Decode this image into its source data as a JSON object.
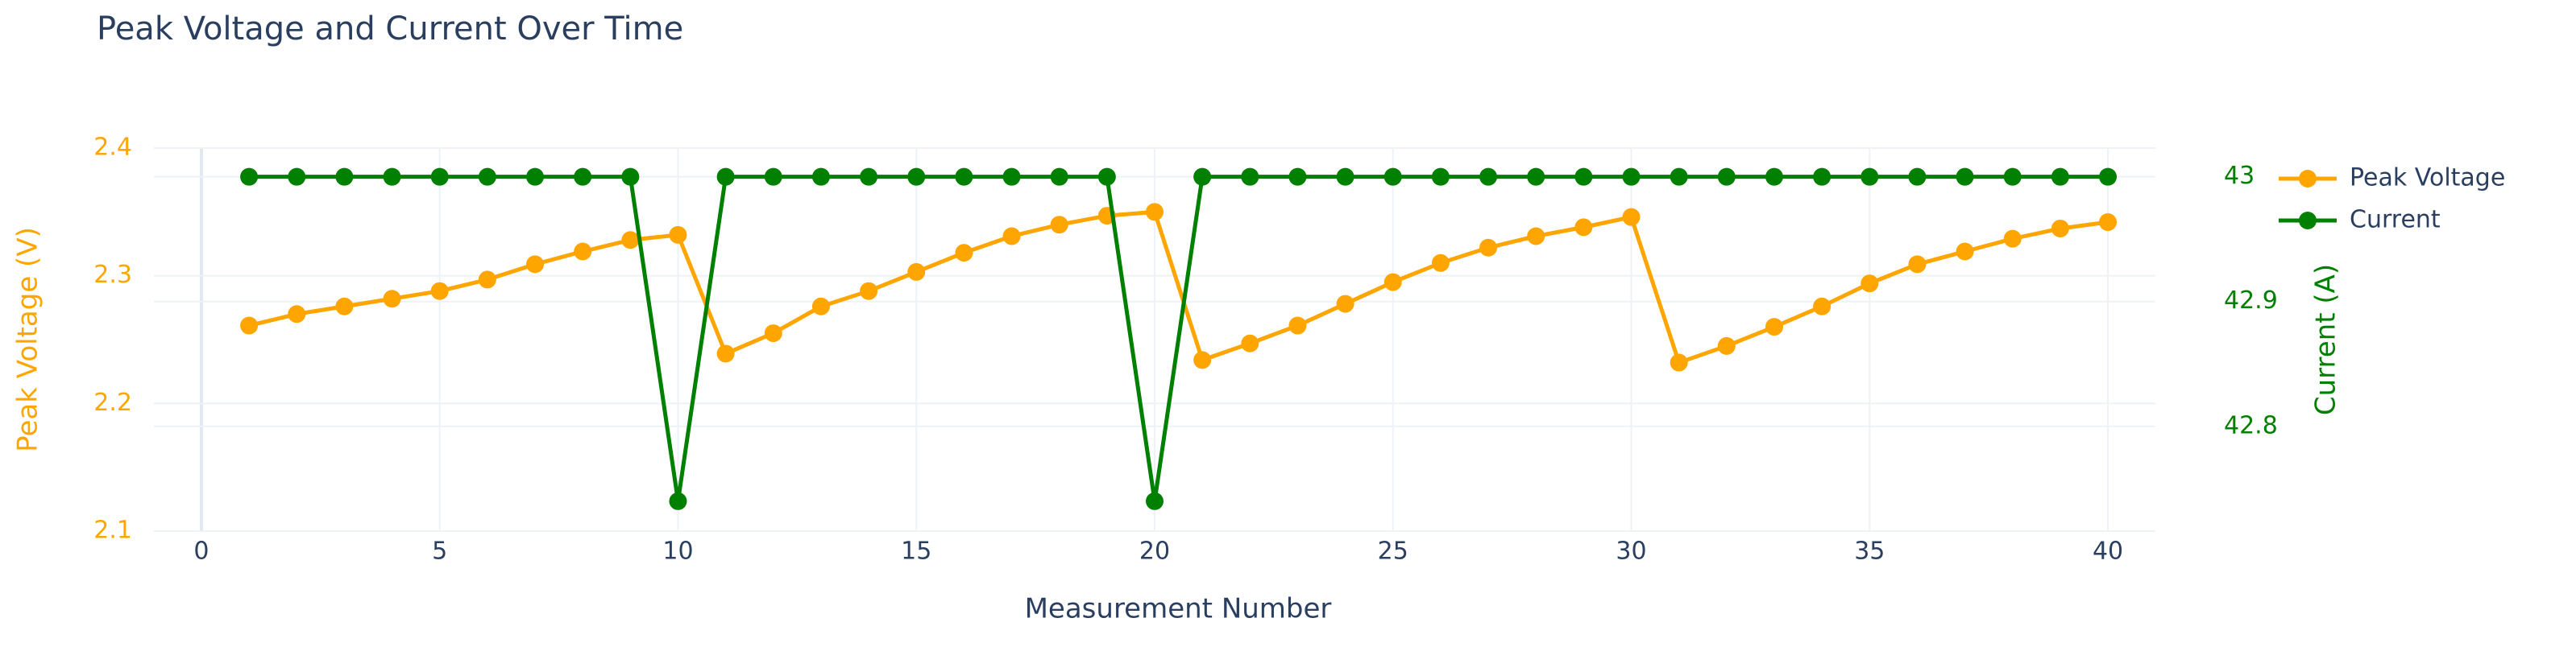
{
  "chart_data": {
    "type": "line",
    "title": "Peak Voltage and Current Over Time",
    "xlabel": "Measurement Number",
    "ylabel": "Peak Voltage (V)",
    "y2label": "Current (A)",
    "x": [
      1,
      2,
      3,
      4,
      5,
      6,
      7,
      8,
      9,
      10,
      11,
      12,
      13,
      14,
      15,
      16,
      17,
      18,
      19,
      20,
      21,
      22,
      23,
      24,
      25,
      26,
      27,
      28,
      29,
      30,
      31,
      32,
      33,
      34,
      35,
      36,
      37,
      38,
      39,
      40
    ],
    "series": [
      {
        "name": "Peak Voltage",
        "color": "#FFA500",
        "axis": "y",
        "values": [
          2.261,
          2.27,
          2.276,
          2.282,
          2.288,
          2.297,
          2.309,
          2.319,
          2.328,
          2.332,
          2.239,
          2.255,
          2.276,
          2.288,
          2.303,
          2.318,
          2.331,
          2.34,
          2.347,
          2.35,
          2.234,
          2.247,
          2.261,
          2.278,
          2.295,
          2.31,
          2.322,
          2.331,
          2.338,
          2.346,
          2.232,
          2.245,
          2.26,
          2.276,
          2.294,
          2.309,
          2.319,
          2.329,
          2.337,
          2.342
        ]
      },
      {
        "name": "Current",
        "color": "#008000",
        "axis": "y2",
        "values": [
          43,
          43,
          43,
          43,
          43,
          43,
          43,
          43,
          43,
          42.74,
          43,
          43,
          43,
          43,
          43,
          43,
          43,
          43,
          43,
          42.74,
          43,
          43,
          43,
          43,
          43,
          43,
          43,
          43,
          43,
          43,
          43,
          43,
          43,
          43,
          43,
          43,
          43,
          43,
          43,
          43
        ]
      }
    ],
    "xlim": [
      -1,
      41
    ],
    "xticks": [
      0,
      5,
      10,
      15,
      20,
      25,
      30,
      35,
      40
    ],
    "ylim": [
      2.1,
      2.4
    ],
    "yticks": [
      2.1,
      2.2,
      2.3,
      2.4
    ],
    "y2lim": [
      42.716,
      43.023
    ],
    "y2ticks": [
      42.8,
      42.9,
      43
    ],
    "grid": true,
    "legend": "top-right-outside"
  }
}
